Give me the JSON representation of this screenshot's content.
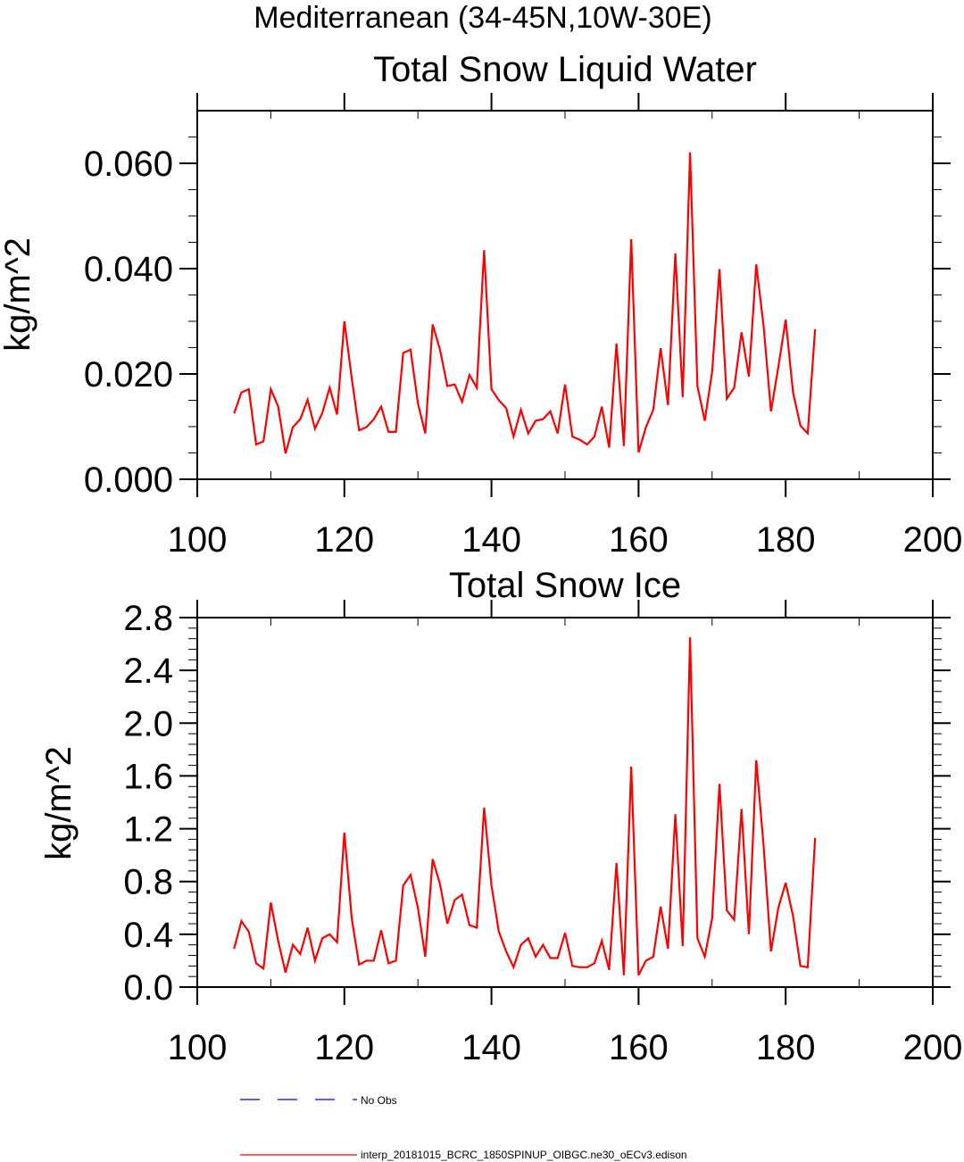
{
  "header": {
    "region_title": "Mediterranean (34-45N,10W-30E)"
  },
  "colors": {
    "line": "#ff0000",
    "obs": "#0000cc",
    "axis": "#000000"
  },
  "legend": {
    "items": [
      {
        "label": "No Obs",
        "style": "dashed",
        "color": "#0000cc"
      },
      {
        "label": "interp_20181015_BCRC_1850SPINUP_OIBGC.ne30_oECv3.edison",
        "style": "solid",
        "color": "#ff0000"
      }
    ]
  },
  "chart_data": [
    {
      "type": "line",
      "title": "Total Snow Liquid Water",
      "xlabel": "",
      "ylabel": "kg/m^2",
      "xlim": [
        100,
        200
      ],
      "ylim": [
        0.0,
        0.07
      ],
      "xticks": [
        "100",
        "120",
        "140",
        "160",
        "180",
        "200"
      ],
      "yticks": [
        "0.000",
        "0.020",
        "0.040",
        "0.060"
      ],
      "series": [
        {
          "name": "interp_20181015_BCRC_1850SPINUP_OIBGC.ne30_oECv3.edison",
          "x": [
            105,
            106,
            107,
            108,
            109,
            110,
            111,
            112,
            113,
            114,
            115,
            116,
            117,
            118,
            119,
            120,
            121,
            122,
            123,
            124,
            125,
            126,
            127,
            128,
            129,
            130,
            131,
            132,
            133,
            134,
            135,
            136,
            137,
            138,
            139,
            140,
            141,
            142,
            143,
            144,
            145,
            146,
            147,
            148,
            149,
            150,
            151,
            152,
            153,
            154,
            155,
            156,
            157,
            158,
            159,
            160,
            161,
            162,
            163,
            164,
            165,
            166,
            167,
            168,
            169,
            170,
            171,
            172,
            173,
            174,
            175,
            176,
            177,
            178,
            179,
            180,
            181,
            182,
            183,
            184
          ],
          "values": [
            0.0125,
            0.0165,
            0.0171,
            0.0066,
            0.0072,
            0.0171,
            0.0138,
            0.0049,
            0.0099,
            0.0114,
            0.0151,
            0.0096,
            0.0126,
            0.0174,
            0.0123,
            0.03,
            0.0192,
            0.0093,
            0.0099,
            0.0114,
            0.0138,
            0.009,
            0.009,
            0.024,
            0.0246,
            0.0144,
            0.0087,
            0.0294,
            0.0246,
            0.0177,
            0.018,
            0.0147,
            0.0198,
            0.0174,
            0.0435,
            0.0171,
            0.015,
            0.0135,
            0.0081,
            0.0132,
            0.0087,
            0.0111,
            0.0114,
            0.0129,
            0.0087,
            0.018,
            0.0081,
            0.0075,
            0.0066,
            0.0081,
            0.0138,
            0.006,
            0.0258,
            0.0063,
            0.0456,
            0.0051,
            0.0099,
            0.0132,
            0.0249,
            0.0141,
            0.0429,
            0.0156,
            0.0621,
            0.0177,
            0.0111,
            0.0204,
            0.0399,
            0.0153,
            0.0174,
            0.0279,
            0.0195,
            0.0408,
            0.0291,
            0.0129,
            0.0213,
            0.0303,
            0.0165,
            0.0102,
            0.0087,
            0.0285
          ]
        }
      ]
    },
    {
      "type": "line",
      "title": "Total Snow Ice",
      "xlabel": "",
      "ylabel": "kg/m^2",
      "xlim": [
        100,
        200
      ],
      "ylim": [
        0.0,
        2.8
      ],
      "xticks": [
        "100",
        "120",
        "140",
        "160",
        "180",
        "200"
      ],
      "yticks": [
        "0.0",
        "0.4",
        "0.8",
        "1.2",
        "1.6",
        "2.0",
        "2.4",
        "2.8"
      ],
      "series": [
        {
          "name": "interp_20181015_BCRC_1850SPINUP_OIBGC.ne30_oECv3.edison",
          "x": [
            105,
            106,
            107,
            108,
            109,
            110,
            111,
            112,
            113,
            114,
            115,
            116,
            117,
            118,
            119,
            120,
            121,
            122,
            123,
            124,
            125,
            126,
            127,
            128,
            129,
            130,
            131,
            132,
            133,
            134,
            135,
            136,
            137,
            138,
            139,
            140,
            141,
            142,
            143,
            144,
            145,
            146,
            147,
            148,
            149,
            150,
            151,
            152,
            153,
            154,
            155,
            156,
            157,
            158,
            159,
            160,
            161,
            162,
            163,
            164,
            165,
            166,
            167,
            168,
            169,
            170,
            171,
            172,
            173,
            174,
            175,
            176,
            177,
            178,
            179,
            180,
            181,
            182,
            183,
            184
          ],
          "values": [
            0.29,
            0.5,
            0.42,
            0.18,
            0.14,
            0.64,
            0.35,
            0.11,
            0.32,
            0.25,
            0.45,
            0.2,
            0.37,
            0.4,
            0.34,
            1.17,
            0.52,
            0.17,
            0.2,
            0.2,
            0.43,
            0.18,
            0.2,
            0.77,
            0.85,
            0.6,
            0.23,
            0.97,
            0.78,
            0.48,
            0.66,
            0.7,
            0.47,
            0.45,
            1.36,
            0.77,
            0.42,
            0.27,
            0.15,
            0.32,
            0.37,
            0.23,
            0.32,
            0.22,
            0.22,
            0.41,
            0.16,
            0.15,
            0.15,
            0.18,
            0.35,
            0.13,
            0.94,
            0.09,
            1.67,
            0.09,
            0.2,
            0.23,
            0.61,
            0.29,
            1.31,
            0.31,
            2.65,
            0.37,
            0.23,
            0.52,
            1.54,
            0.58,
            0.51,
            1.35,
            0.4,
            1.72,
            1.07,
            0.27,
            0.6,
            0.79,
            0.54,
            0.16,
            0.15,
            1.13
          ]
        }
      ]
    }
  ]
}
